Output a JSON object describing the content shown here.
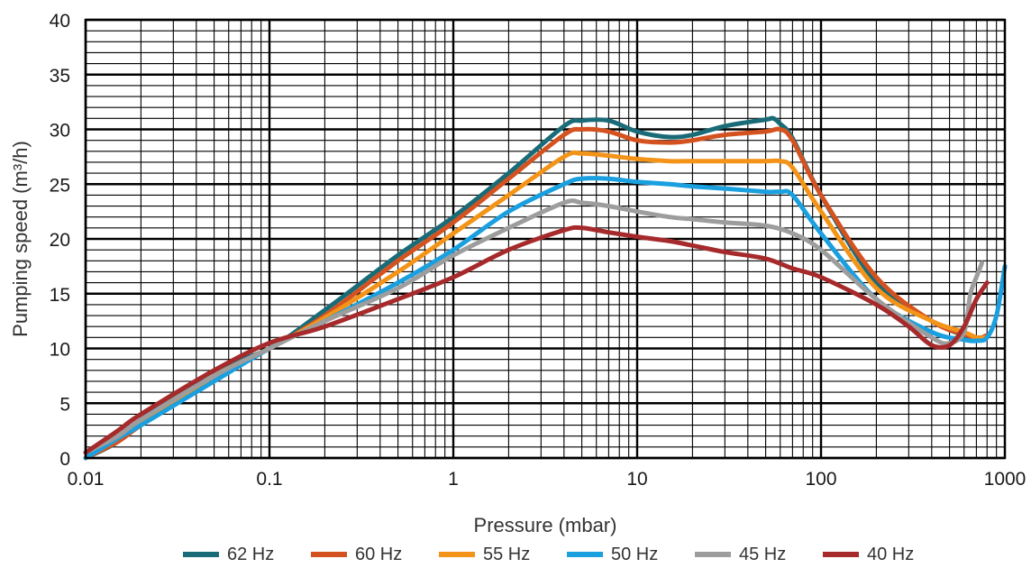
{
  "chart_data": {
    "type": "line",
    "title": "",
    "xlabel": "Pressure (mbar)",
    "ylabel": "Pumping speed (m³/h)",
    "x_scale": "log",
    "xlim": [
      0.01,
      1000
    ],
    "ylim": [
      0,
      40
    ],
    "x_ticks": [
      0.01,
      0.1,
      1,
      10,
      100,
      1000
    ],
    "x_tick_labels": [
      "0.01",
      "0.1",
      "1",
      "10",
      "100",
      "1000"
    ],
    "y_ticks": [
      0,
      5,
      10,
      15,
      20,
      25,
      30,
      35,
      40
    ],
    "y_tick_labels": [
      "0",
      "5",
      "10",
      "15",
      "20",
      "25",
      "30",
      "35",
      "40"
    ],
    "grid": true,
    "legend_position": "bottom",
    "series": [
      {
        "name": "62 Hz",
        "color": "#1a6b78",
        "x": [
          0.01,
          0.015,
          0.02,
          0.05,
          0.1,
          0.2,
          0.5,
          1,
          2,
          4,
          5,
          7,
          10,
          15,
          20,
          30,
          50,
          55,
          60,
          70,
          100,
          200,
          400,
          600,
          700,
          750,
          800
        ],
        "y": [
          0,
          1.5,
          3.5,
          8.0,
          10.0,
          13.5,
          18.5,
          22.0,
          26.0,
          30.3,
          30.8,
          30.8,
          29.8,
          29.3,
          29.5,
          30.3,
          30.9,
          31.0,
          30.5,
          29.2,
          24.0,
          16.0,
          12.5,
          11.2,
          11.0,
          11.0,
          11.2
        ]
      },
      {
        "name": "60 Hz",
        "color": "#d4521f",
        "x": [
          0.01,
          0.015,
          0.02,
          0.05,
          0.1,
          0.2,
          0.5,
          1,
          2,
          4,
          5,
          7,
          10,
          15,
          20,
          30,
          50,
          60,
          70,
          100,
          200,
          400,
          600,
          700,
          750,
          800
        ],
        "y": [
          0,
          1.5,
          3.0,
          7.5,
          10.0,
          13.0,
          18.0,
          21.5,
          25.5,
          29.5,
          30.0,
          29.8,
          29.0,
          28.8,
          29.0,
          29.5,
          29.8,
          30.0,
          29.0,
          24.0,
          16.5,
          12.5,
          11.3,
          11.0,
          11.0,
          11.2
        ]
      },
      {
        "name": "55 Hz",
        "color": "#f39419",
        "x": [
          0.01,
          0.015,
          0.02,
          0.05,
          0.1,
          0.2,
          0.5,
          1,
          2,
          4,
          5,
          7,
          10,
          15,
          20,
          30,
          50,
          60,
          70,
          100,
          200,
          400,
          600,
          700,
          800
        ],
        "y": [
          0,
          1.8,
          3.2,
          7.5,
          10.0,
          12.8,
          17.0,
          20.5,
          24.0,
          27.5,
          27.8,
          27.6,
          27.3,
          27.1,
          27.1,
          27.1,
          27.1,
          27.1,
          26.5,
          22.5,
          15.5,
          12.5,
          11.5,
          11.0,
          11.0
        ]
      },
      {
        "name": "50 Hz",
        "color": "#1a9fdf",
        "x": [
          0.01,
          0.015,
          0.02,
          0.05,
          0.1,
          0.2,
          0.5,
          1,
          2,
          4,
          5,
          7,
          10,
          15,
          20,
          30,
          50,
          60,
          70,
          100,
          200,
          400,
          600,
          700,
          800,
          900,
          1000
        ],
        "y": [
          0,
          1.8,
          3.0,
          7.0,
          10.0,
          12.5,
          16.0,
          19.0,
          22.5,
          25.0,
          25.5,
          25.5,
          25.2,
          25.0,
          24.8,
          24.6,
          24.3,
          24.3,
          24.0,
          20.5,
          14.5,
          11.5,
          10.8,
          10.7,
          11.0,
          13.0,
          17.5
        ]
      },
      {
        "name": "45 Hz",
        "color": "#9d9d9d",
        "x": [
          0.01,
          0.015,
          0.02,
          0.05,
          0.1,
          0.2,
          0.5,
          1,
          2,
          4,
          5,
          7,
          10,
          15,
          20,
          30,
          50,
          70,
          100,
          200,
          400,
          500,
          600,
          650,
          700,
          750
        ],
        "y": [
          0.5,
          2.0,
          3.5,
          7.5,
          10.0,
          12.5,
          15.5,
          18.5,
          21.0,
          23.3,
          23.3,
          23.0,
          22.5,
          22.0,
          21.8,
          21.5,
          21.2,
          20.5,
          19.0,
          14.5,
          11.0,
          10.5,
          11.5,
          15.0,
          16.5,
          17.8
        ]
      },
      {
        "name": "40 Hz",
        "color": "#a62a2b",
        "x": [
          0.01,
          0.015,
          0.02,
          0.05,
          0.1,
          0.2,
          0.5,
          1,
          2,
          4,
          5,
          7,
          10,
          15,
          20,
          30,
          50,
          70,
          100,
          200,
          300,
          400,
          500,
          600,
          700,
          800
        ],
        "y": [
          0.5,
          2.5,
          4.0,
          8.0,
          10.5,
          12.0,
          14.5,
          16.5,
          19.0,
          20.8,
          21.0,
          20.6,
          20.2,
          19.8,
          19.4,
          18.8,
          18.2,
          17.3,
          16.5,
          14.0,
          12.0,
          10.3,
          10.3,
          12.0,
          14.5,
          16.0
        ]
      }
    ]
  }
}
